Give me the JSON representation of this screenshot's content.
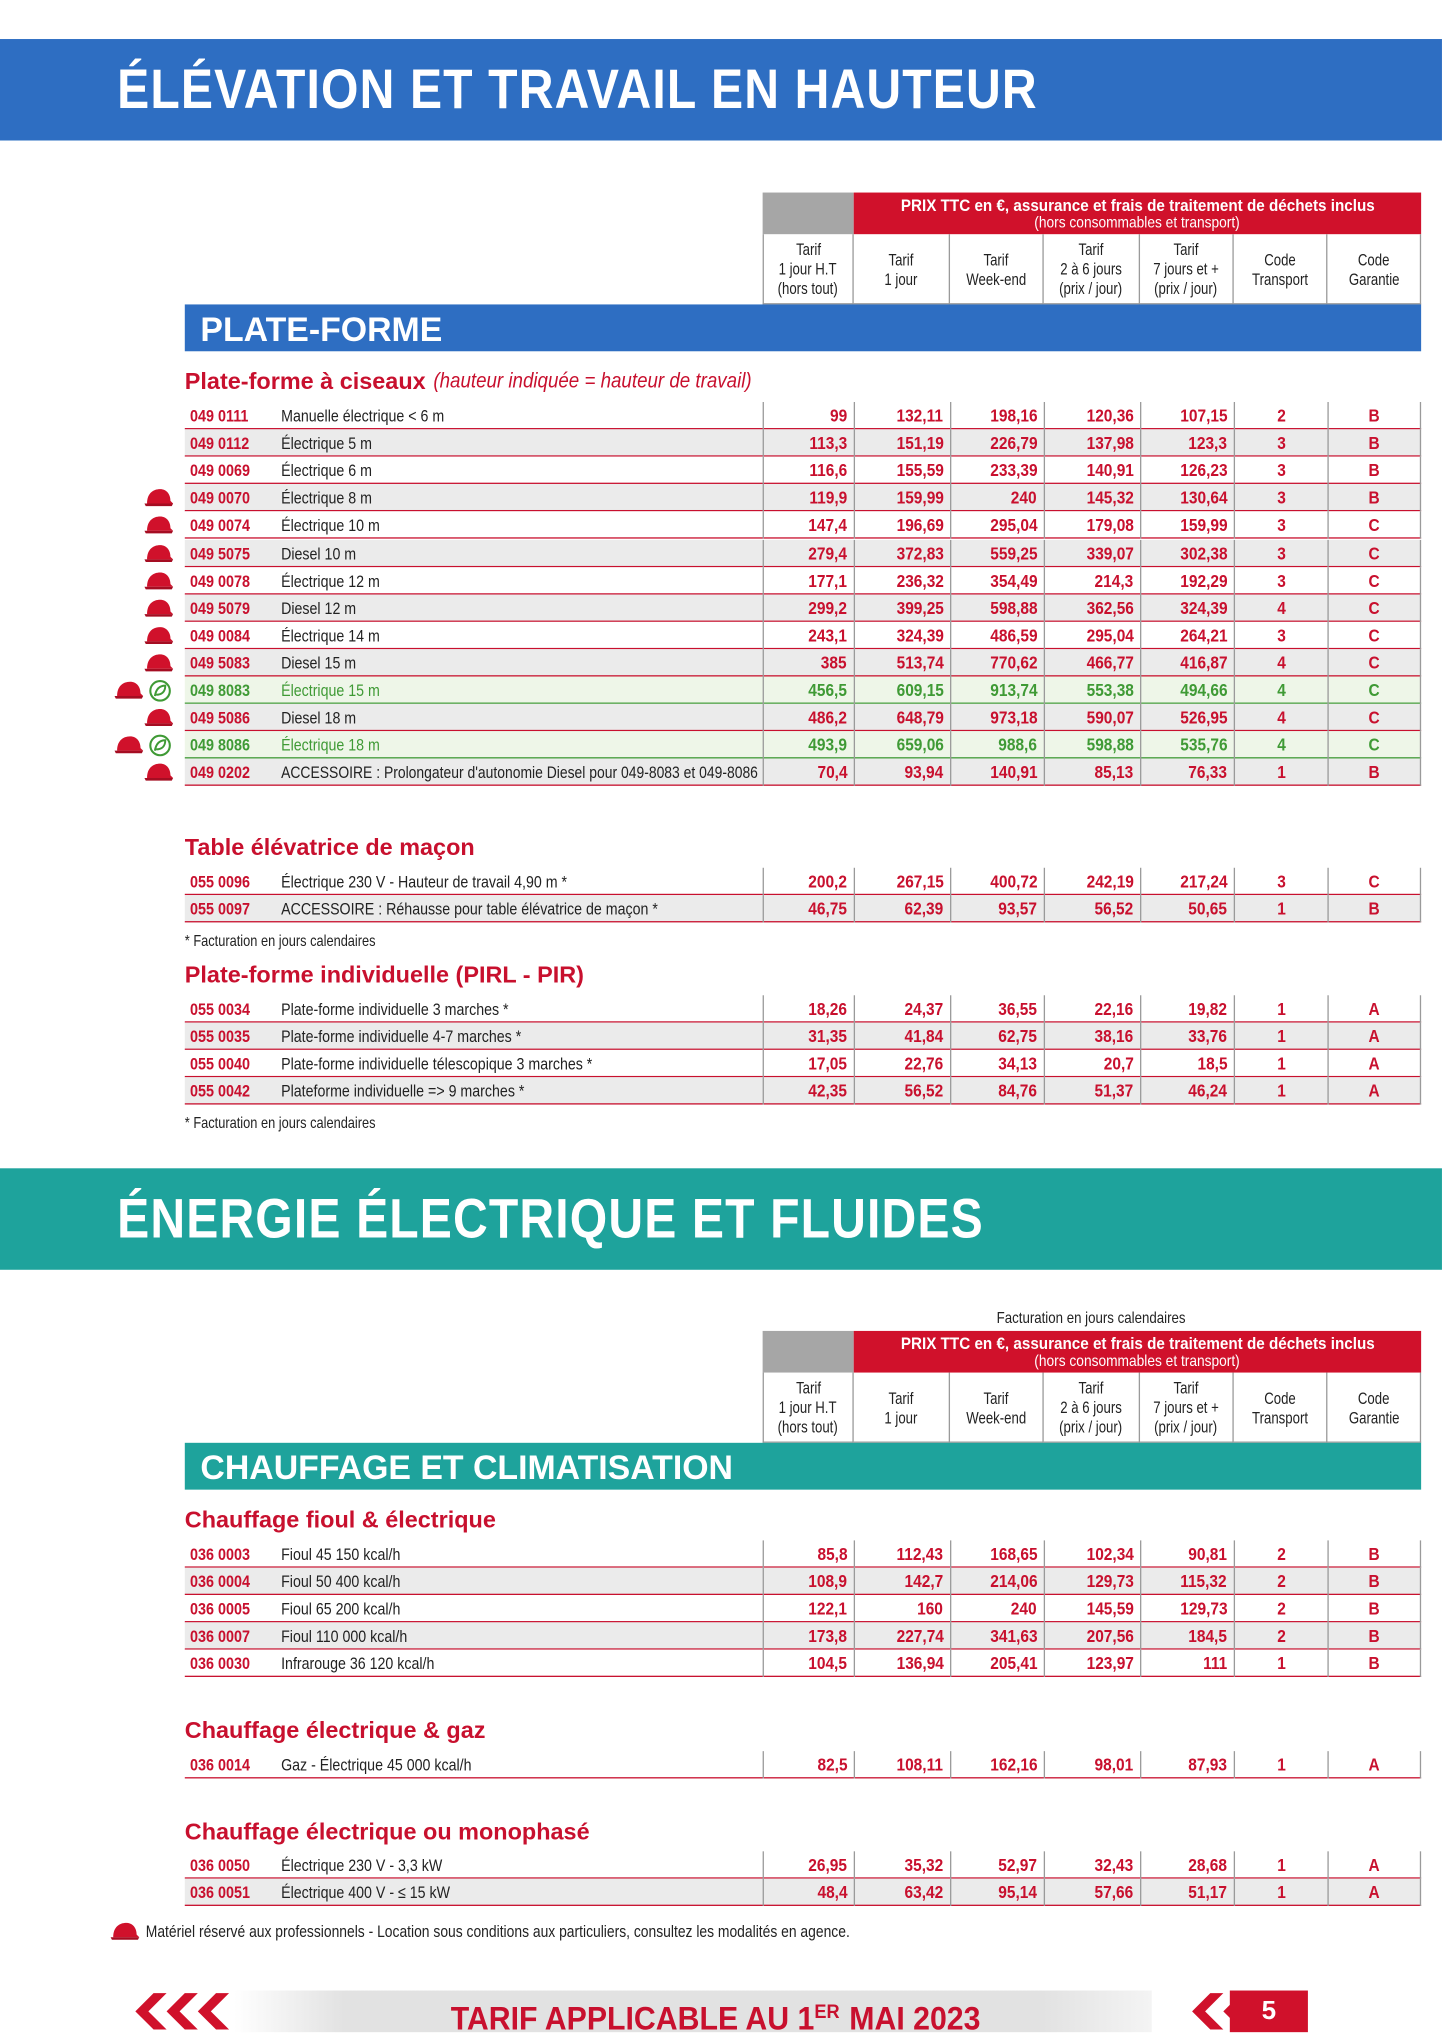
{
  "sections": [
    {
      "title": "ÉLÉVATION ET TRAVAIL EN HAUTEUR",
      "header": {
        "main": "PRIX TTC en €, assurance et frais de traitement de déchets inclus",
        "sub": "(hors consommables et transport)",
        "columns": [
          [
            "Tarif",
            "1 jour H.T",
            "(hors tout)"
          ],
          [
            "Tarif",
            "1 jour"
          ],
          [
            "Tarif",
            "Week-end"
          ],
          [
            "Tarif",
            "2 à 6 jours",
            "(prix / jour)"
          ],
          [
            "Tarif",
            "7 jours et +",
            "(prix / jour)"
          ],
          [
            "Code",
            "Transport"
          ],
          [
            "Code",
            "Garantie"
          ]
        ]
      },
      "categories": [
        {
          "title": "PLATE-FORME",
          "groups": [
            {
              "title": "Plate-forme à ciseaux",
              "note": "(hauteur indiquée = hauteur de travail)",
              "rows": [
                [
                  "049 0111",
                  "Manuelle électrique < 6 m",
                  "99",
                  "132,11",
                  "198,16",
                  "120,36",
                  "107,15",
                  "2",
                  "B"
                ],
                [
                  "049 0112",
                  "Électrique 5 m",
                  "113,3",
                  "151,19",
                  "226,79",
                  "137,98",
                  "123,3",
                  "3",
                  "B"
                ],
                [
                  "049 0069",
                  "Électrique 6 m",
                  "116,6",
                  "155,59",
                  "233,39",
                  "140,91",
                  "126,23",
                  "3",
                  "B"
                ],
                [
                  "049 0070",
                  "Électrique 8 m",
                  "119,9",
                  "159,99",
                  "240",
                  "145,32",
                  "130,64",
                  "3",
                  "B"
                ],
                [
                  "049 0074",
                  "Électrique 10 m",
                  "147,4",
                  "196,69",
                  "295,04",
                  "179,08",
                  "159,99",
                  "3",
                  "C"
                ],
                [
                  "049 5075",
                  "Diesel 10 m",
                  "279,4",
                  "372,83",
                  "559,25",
                  "339,07",
                  "302,38",
                  "3",
                  "C"
                ],
                [
                  "049 0078",
                  "Électrique 12 m",
                  "177,1",
                  "236,32",
                  "354,49",
                  "214,3",
                  "192,29",
                  "3",
                  "C"
                ],
                [
                  "049 5079",
                  "Diesel 12 m",
                  "299,2",
                  "399,25",
                  "598,88",
                  "362,56",
                  "324,39",
                  "4",
                  "C"
                ],
                [
                  "049 0084",
                  "Électrique 14 m",
                  "243,1",
                  "324,39",
                  "486,59",
                  "295,04",
                  "264,21",
                  "3",
                  "C"
                ],
                [
                  "049 5083",
                  "Diesel 15 m",
                  "385",
                  "513,74",
                  "770,62",
                  "466,77",
                  "416,87",
                  "4",
                  "C"
                ],
                [
                  "049 8083",
                  "Électrique 15 m",
                  "456,5",
                  "609,15",
                  "913,74",
                  "553,38",
                  "494,66",
                  "4",
                  "C"
                ],
                [
                  "049 5086",
                  "Diesel 18 m",
                  "486,2",
                  "648,79",
                  "973,18",
                  "590,07",
                  "526,95",
                  "4",
                  "C"
                ],
                [
                  "049 8086",
                  "Électrique 18 m",
                  "493,9",
                  "659,06",
                  "988,6",
                  "598,88",
                  "535,76",
                  "4",
                  "C"
                ],
                [
                  "049 0202",
                  "ACCESSOIRE : Prolongateur d'autonomie Diesel pour 049-8083 et 049-8086",
                  "70,4",
                  "93,94",
                  "140,91",
                  "85,13",
                  "76,33",
                  "1",
                  "B"
                ]
              ]
            },
            {
              "title": "Table élévatrice de maçon",
              "rows": [
                [
                  "055 0096",
                  "Électrique 230 V - Hauteur de travail 4,90 m *",
                  "200,2",
                  "267,15",
                  "400,72",
                  "242,19",
                  "217,24",
                  "3",
                  "C"
                ],
                [
                  "055 0097",
                  "ACCESSOIRE : Réhausse pour table élévatrice de maçon *",
                  "46,75",
                  "62,39",
                  "93,57",
                  "56,52",
                  "50,65",
                  "1",
                  "B"
                ]
              ],
              "footnote": "* Facturation en jours calendaires"
            },
            {
              "title": "Plate-forme individuelle (PIRL - PIR)",
              "rows": [
                [
                  "055 0034",
                  "Plate-forme individuelle 3 marches *",
                  "18,26",
                  "24,37",
                  "36,55",
                  "22,16",
                  "19,82",
                  "1",
                  "A"
                ],
                [
                  "055 0035",
                  "Plate-forme individuelle 4-7 marches *",
                  "31,35",
                  "41,84",
                  "62,75",
                  "38,16",
                  "33,76",
                  "1",
                  "A"
                ],
                [
                  "055 0040",
                  "Plate-forme individuelle télescopique 3 marches *",
                  "17,05",
                  "22,76",
                  "34,13",
                  "20,7",
                  "18,5",
                  "1",
                  "A"
                ],
                [
                  "055 0042",
                  "Plateforme individuelle => 9 marches *",
                  "42,35",
                  "56,52",
                  "84,76",
                  "51,37",
                  "46,24",
                  "1",
                  "A"
                ]
              ],
              "footnote": "* Facturation en jours calendaires"
            }
          ]
        }
      ]
    },
    {
      "title": "ÉNERGIE ÉLECTRIQUE ET FLUIDES",
      "note": "Facturation en jours calendaires",
      "header": {
        "main": "PRIX TTC en €, assurance et frais de traitement de déchets inclus",
        "sub": "(hors consommables et transport)",
        "columns": [
          [
            "Tarif",
            "1 jour H.T",
            "(hors tout)"
          ],
          [
            "Tarif",
            "1 jour"
          ],
          [
            "Tarif",
            "Week-end"
          ],
          [
            "Tarif",
            "2 à 6 jours",
            "(prix / jour)"
          ],
          [
            "Tarif",
            "7 jours et +",
            "(prix / jour)"
          ],
          [
            "Code",
            "Transport"
          ],
          [
            "Code",
            "Garantie"
          ]
        ]
      },
      "categories": [
        {
          "title": "CHAUFFAGE ET CLIMATISATION",
          "groups": [
            {
              "title": "Chauffage fioul & électrique",
              "rows": [
                [
                  "036 0003",
                  "Fioul  45 150 kcal/h",
                  "85,8",
                  "112,43",
                  "168,65",
                  "102,34",
                  "90,81",
                  "2",
                  "B"
                ],
                [
                  "036 0004",
                  "Fioul 50 400 kcal/h",
                  "108,9",
                  "142,7",
                  "214,06",
                  "129,73",
                  "115,32",
                  "2",
                  "B"
                ],
                [
                  "036 0005",
                  "Fioul 65 200 kcal/h",
                  "122,1",
                  "160",
                  "240",
                  "145,59",
                  "129,73",
                  "2",
                  "B"
                ],
                [
                  "036 0007",
                  "Fioul 110 000 kcal/h",
                  "173,8",
                  "227,74",
                  "341,63",
                  "207,56",
                  "184,5",
                  "2",
                  "B"
                ],
                [
                  "036 0030",
                  "Infrarouge 36 120 kcal/h",
                  "104,5",
                  "136,94",
                  "205,41",
                  "123,97",
                  "111",
                  "1",
                  "B"
                ]
              ]
            },
            {
              "title": "Chauffage électrique & gaz",
              "rows": [
                [
                  "036 0014",
                  "Gaz - Électrique 45 000 kcal/h",
                  "82,5",
                  "108,11",
                  "162,16",
                  "98,01",
                  "87,93",
                  "1",
                  "A"
                ]
              ]
            },
            {
              "title": "Chauffage électrique ou monophasé",
              "rows": [
                [
                  "036 0050",
                  "Électrique 230 V - 3,3 kW",
                  "26,95",
                  "35,32",
                  "52,97",
                  "32,43",
                  "28,68",
                  "1",
                  "A"
                ],
                [
                  "036 0051",
                  "Électrique 400 V - ≤ 15 kW",
                  "48,4",
                  "63,42",
                  "95,14",
                  "57,66",
                  "51,17",
                  "1",
                  "A"
                ]
              ]
            }
          ]
        }
      ]
    }
  ],
  "footer": {
    "note": "Matériel réservé aux professionnels - Location sous conditions aux particuliers, consultez les modalités en agence.",
    "banner": [
      "TARIF APPLICABLE AU 1",
      "ER",
      "MAI 2023"
    ],
    "page": "5"
  }
}
